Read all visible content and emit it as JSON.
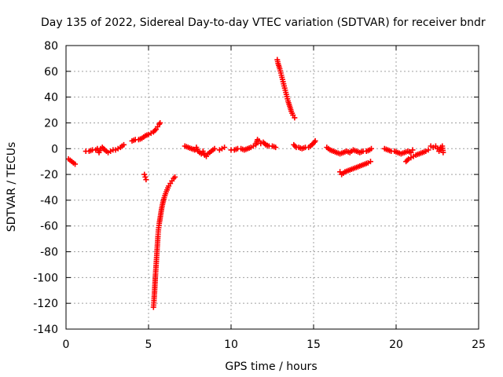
{
  "chart_data": {
    "type": "scatter",
    "title": "Day 135 of 2022, Sidereal Day-to-day VTEC variation (SDTVAR) for receiver bndr",
    "xlabel": "GPS time / hours",
    "ylabel": "SDTVAR / TECUs",
    "xlim": [
      0,
      25
    ],
    "ylim": [
      -140,
      80
    ],
    "xticks": [
      0,
      5,
      10,
      15,
      20,
      25
    ],
    "yticks": [
      -140,
      -120,
      -100,
      -80,
      -60,
      -40,
      -20,
      0,
      20,
      40,
      60,
      80
    ],
    "grid": true,
    "marker": "+",
    "color": "#ff0000",
    "series": [
      {
        "name": "SDTVAR",
        "segments": [
          [
            [
              0.15,
              -8
            ],
            [
              0.25,
              -9
            ],
            [
              0.35,
              -10
            ],
            [
              0.45,
              -11
            ],
            [
              0.55,
              -12
            ]
          ],
          [
            [
              1.2,
              -2
            ],
            [
              1.4,
              -2
            ],
            [
              1.6,
              -1
            ],
            [
              1.8,
              -1
            ],
            [
              1.9,
              0
            ],
            [
              2.0,
              -3
            ],
            [
              2.1,
              0
            ],
            [
              2.2,
              1
            ],
            [
              2.35,
              -1
            ],
            [
              2.45,
              -2
            ],
            [
              2.55,
              -3
            ],
            [
              2.7,
              -2
            ],
            [
              2.85,
              -1
            ],
            [
              3.0,
              -1
            ],
            [
              3.15,
              0
            ],
            [
              3.3,
              1
            ],
            [
              3.4,
              2
            ],
            [
              3.5,
              3
            ]
          ],
          [
            [
              4.0,
              6
            ],
            [
              4.2,
              7
            ],
            [
              4.4,
              7
            ],
            [
              4.6,
              8
            ],
            [
              4.8,
              10
            ],
            [
              5.0,
              11
            ],
            [
              5.15,
              12
            ],
            [
              5.3,
              13
            ],
            [
              5.45,
              15
            ],
            [
              5.55,
              17
            ],
            [
              5.65,
              19
            ],
            [
              5.7,
              20
            ]
          ],
          [
            [
              4.75,
              -20
            ],
            [
              4.8,
              -22
            ],
            [
              4.85,
              -24
            ]
          ],
          [
            [
              5.3,
              -123
            ],
            [
              5.33,
              -118
            ],
            [
              5.36,
              -112
            ],
            [
              5.39,
              -105
            ],
            [
              5.42,
              -98
            ],
            [
              5.45,
              -92
            ],
            [
              5.48,
              -86
            ],
            [
              5.51,
              -80
            ],
            [
              5.54,
              -74
            ],
            [
              5.57,
              -68
            ],
            [
              5.6,
              -63
            ],
            [
              5.65,
              -58
            ],
            [
              5.7,
              -54
            ],
            [
              5.75,
              -50
            ],
            [
              5.8,
              -46
            ],
            [
              5.87,
              -42
            ],
            [
              5.95,
              -38
            ],
            [
              6.03,
              -35
            ],
            [
              6.12,
              -32
            ],
            [
              6.22,
              -29
            ],
            [
              6.32,
              -27
            ],
            [
              6.42,
              -25
            ],
            [
              6.52,
              -23
            ],
            [
              6.6,
              -22
            ]
          ],
          [
            [
              7.2,
              2
            ],
            [
              7.4,
              1
            ],
            [
              7.6,
              0
            ],
            [
              7.8,
              -1
            ],
            [
              7.9,
              1
            ],
            [
              8.0,
              -2
            ],
            [
              8.1,
              -3
            ],
            [
              8.2,
              -4
            ],
            [
              8.3,
              -2
            ],
            [
              8.4,
              -5
            ],
            [
              8.5,
              -6
            ],
            [
              8.6,
              -4
            ],
            [
              8.7,
              -3
            ],
            [
              8.8,
              -2
            ],
            [
              8.9,
              -1
            ],
            [
              9.0,
              0
            ]
          ],
          [
            [
              9.3,
              -1
            ],
            [
              9.45,
              0
            ],
            [
              9.6,
              1
            ]
          ],
          [
            [
              10.0,
              -1
            ],
            [
              10.2,
              -1
            ],
            [
              10.4,
              0
            ],
            [
              10.6,
              0
            ],
            [
              10.8,
              -1
            ],
            [
              11.0,
              0
            ],
            [
              11.2,
              1
            ],
            [
              11.35,
              2
            ],
            [
              11.5,
              3
            ],
            [
              11.6,
              7
            ],
            [
              11.7,
              6
            ],
            [
              11.8,
              4
            ],
            [
              11.95,
              5
            ],
            [
              12.1,
              3
            ],
            [
              12.3,
              2
            ],
            [
              12.5,
              2
            ],
            [
              12.7,
              1
            ]
          ],
          [
            [
              12.8,
              69
            ],
            [
              12.85,
              66
            ],
            [
              12.95,
              62
            ],
            [
              13.05,
              57
            ],
            [
              13.15,
              52
            ],
            [
              13.25,
              47
            ],
            [
              13.35,
              42
            ],
            [
              13.45,
              37
            ],
            [
              13.55,
              33
            ],
            [
              13.65,
              29
            ],
            [
              13.75,
              26
            ],
            [
              13.85,
              24
            ]
          ],
          [
            [
              13.8,
              3
            ],
            [
              13.95,
              1
            ],
            [
              14.1,
              1
            ],
            [
              14.3,
              0
            ],
            [
              14.5,
              1
            ],
            [
              14.7,
              1
            ],
            [
              14.9,
              3
            ],
            [
              15.05,
              5
            ],
            [
              15.1,
              6
            ]
          ],
          [
            [
              15.8,
              1
            ],
            [
              16.0,
              -1
            ],
            [
              16.2,
              -2
            ],
            [
              16.4,
              -3
            ],
            [
              16.6,
              -4
            ],
            [
              16.8,
              -3
            ],
            [
              17.0,
              -2
            ],
            [
              17.2,
              -3
            ],
            [
              17.4,
              -1
            ],
            [
              17.6,
              -2
            ],
            [
              17.8,
              -3
            ],
            [
              18.0,
              -2
            ],
            [
              18.2,
              -2
            ],
            [
              18.4,
              -1
            ],
            [
              18.5,
              0
            ]
          ],
          [
            [
              16.6,
              -18
            ],
            [
              16.7,
              -20
            ],
            [
              16.9,
              -18
            ],
            [
              17.1,
              -17
            ],
            [
              17.3,
              -16
            ],
            [
              17.5,
              -15
            ],
            [
              17.7,
              -14
            ],
            [
              17.9,
              -13
            ],
            [
              18.1,
              -12
            ],
            [
              18.3,
              -11
            ],
            [
              18.45,
              -10
            ]
          ],
          [
            [
              19.3,
              0
            ],
            [
              19.5,
              -1
            ],
            [
              19.7,
              -2
            ],
            [
              19.9,
              -2
            ],
            [
              20.1,
              -3
            ],
            [
              20.3,
              -4
            ],
            [
              20.5,
              -3
            ],
            [
              20.7,
              -2
            ],
            [
              20.9,
              -3
            ],
            [
              21.0,
              -1
            ]
          ],
          [
            [
              20.6,
              -10
            ],
            [
              20.75,
              -8
            ],
            [
              20.9,
              -7
            ],
            [
              21.05,
              -6
            ],
            [
              21.2,
              -5
            ],
            [
              21.4,
              -4
            ],
            [
              21.6,
              -3
            ],
            [
              21.8,
              -2
            ],
            [
              21.95,
              -1
            ]
          ],
          [
            [
              22.1,
              2
            ],
            [
              22.25,
              1
            ],
            [
              22.4,
              2
            ],
            [
              22.5,
              0
            ],
            [
              22.6,
              -2
            ],
            [
              22.7,
              1
            ],
            [
              22.8,
              2
            ],
            [
              22.85,
              -3
            ]
          ]
        ]
      }
    ]
  }
}
